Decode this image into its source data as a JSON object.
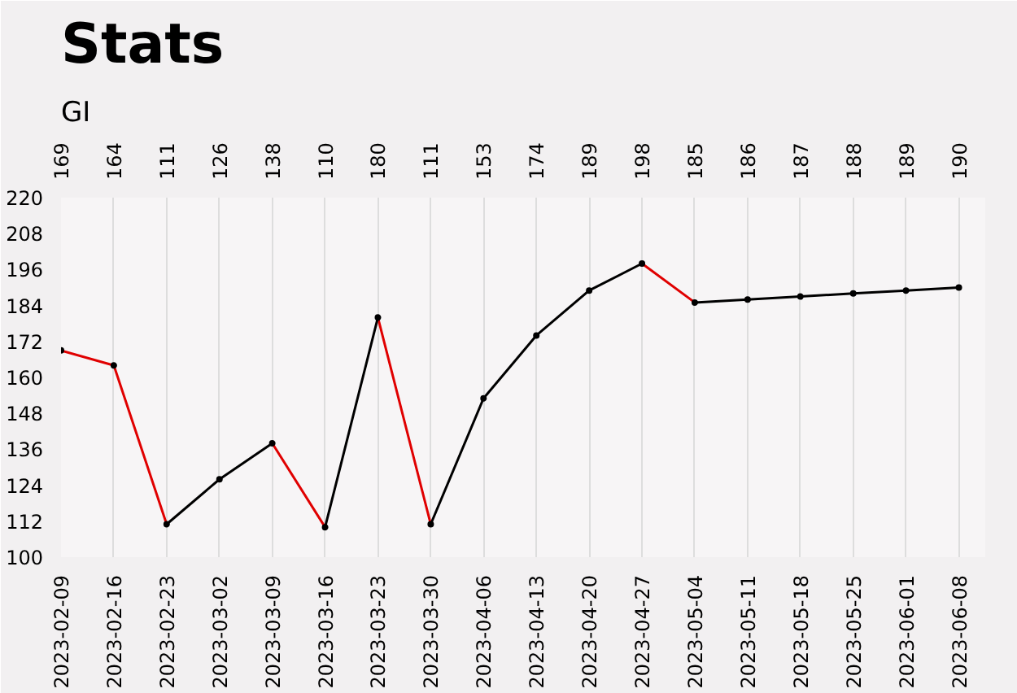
{
  "chart_data": {
    "type": "line",
    "title": "Stats",
    "ylabel": "GI",
    "categories": [
      "2023-02-09",
      "2023-02-16",
      "2023-02-23",
      "2023-03-02",
      "2023-03-09",
      "2023-03-16",
      "2023-03-23",
      "2023-03-30",
      "2023-04-06",
      "2023-04-13",
      "2023-04-20",
      "2023-04-27",
      "2023-05-04",
      "2023-05-11",
      "2023-05-18",
      "2023-05-25",
      "2023-06-01",
      "2023-06-08"
    ],
    "series": [
      {
        "type": "scatter",
        "color": "#000000",
        "values": [
          169,
          164,
          111,
          126,
          138,
          110,
          180,
          111,
          153,
          174,
          189,
          198,
          185,
          186,
          187,
          188,
          189,
          190
        ],
        "value_labels": [
          "169",
          "164",
          "111",
          "126",
          "138",
          "110",
          "180",
          "111",
          "153",
          "174",
          "189",
          "198",
          "185",
          "186",
          "187",
          "188",
          "189",
          "190"
        ]
      },
      {
        "color": "#e00000",
        "marker": "none",
        "values": [
          169,
          164,
          111,
          null,
          null,
          null,
          180,
          111,
          null,
          null,
          null,
          null,
          null,
          null,
          null,
          null,
          null,
          null
        ]
      },
      {
        "color": "#e00000",
        "marker": "none",
        "values": [
          null,
          null,
          null,
          null,
          138,
          110,
          null,
          null,
          null,
          null,
          null,
          198,
          185,
          null,
          null,
          null,
          null,
          null
        ]
      },
      {
        "color": "#000000",
        "marker": "none",
        "values": [
          null,
          null,
          111,
          126,
          138,
          null,
          null,
          111,
          153,
          174,
          189,
          198,
          null,
          null,
          null,
          null,
          null,
          null
        ]
      },
      {
        "color": "#000000",
        "marker": "none",
        "values": [
          null,
          null,
          null,
          null,
          null,
          110,
          180,
          null,
          null,
          null,
          null,
          null,
          185,
          186,
          187,
          188,
          189,
          190
        ]
      }
    ],
    "ylim": [
      100,
      220
    ],
    "yticks": [
      100,
      112,
      124,
      136,
      148,
      160,
      172,
      184,
      196,
      208,
      220
    ],
    "grid": "x",
    "marker": "circle"
  }
}
